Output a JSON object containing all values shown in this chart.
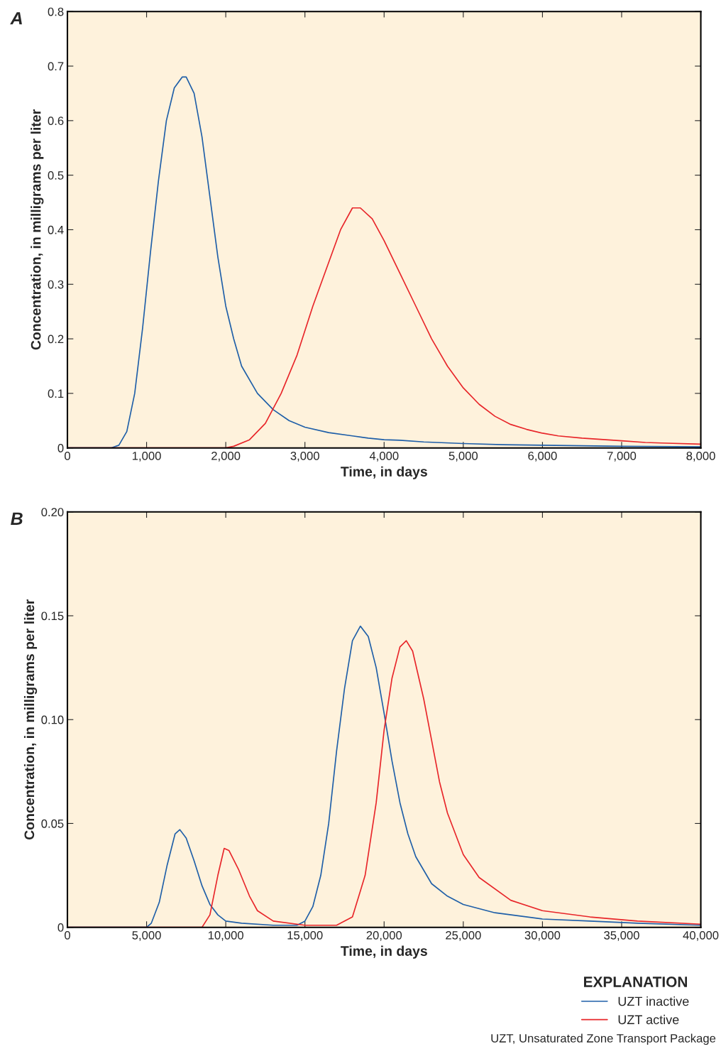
{
  "chart_data": [
    {
      "type": "line",
      "xlabel": "Time, in days",
      "ylabel": "Concentration, in milligrams per liter",
      "annotations": [
        "A"
      ],
      "xlim": [
        0,
        8000
      ],
      "ylim": [
        0,
        0.8
      ],
      "xticks": [
        0,
        {
          "value": 1000,
          "label": "1,000"
        },
        {
          "value": 2000,
          "label": "2,000"
        },
        {
          "value": 3000,
          "label": "3,000"
        },
        {
          "value": 4000,
          "label": "4,000"
        },
        {
          "value": 5000,
          "label": "5,000"
        },
        {
          "value": 6000,
          "label": "6,000"
        },
        {
          "value": 7000,
          "label": "7,000"
        },
        {
          "value": 8000,
          "label": "8,000"
        }
      ],
      "yticks": [
        0,
        0.1,
        0.2,
        0.3,
        0.4,
        0.5,
        0.6,
        0.7,
        0.8
      ],
      "grid": false,
      "legend": false,
      "marker": "none",
      "line_style": "solid",
      "series": [
        {
          "color": "#1f5fa8",
          "x": [
            0,
            550,
            650,
            750,
            850,
            950,
            1050,
            1150,
            1250,
            1350,
            1450,
            1500,
            1600,
            1700,
            1800,
            1900,
            2000,
            2100,
            2200,
            2400,
            2600,
            2800,
            3000,
            3300,
            3600,
            3800,
            4000,
            4200,
            4500,
            5000,
            5500,
            6000,
            7000,
            8000
          ],
          "values": [
            0,
            0,
            0.005,
            0.03,
            0.1,
            0.22,
            0.36,
            0.49,
            0.6,
            0.66,
            0.68,
            0.68,
            0.65,
            0.57,
            0.46,
            0.35,
            0.26,
            0.2,
            0.15,
            0.1,
            0.07,
            0.05,
            0.038,
            0.028,
            0.022,
            0.018,
            0.015,
            0.014,
            0.011,
            0.008,
            0.006,
            0.005,
            0.003,
            0.002
          ]
        },
        {
          "color": "#e8262a",
          "x": [
            0,
            2000,
            2100,
            2300,
            2500,
            2700,
            2900,
            3100,
            3300,
            3450,
            3600,
            3700,
            3850,
            4000,
            4200,
            4400,
            4600,
            4800,
            5000,
            5200,
            5400,
            5600,
            5800,
            6000,
            6200,
            6500,
            7000,
            7300,
            7500,
            8000
          ],
          "values": [
            0,
            0,
            0.003,
            0.015,
            0.045,
            0.1,
            0.17,
            0.26,
            0.34,
            0.4,
            0.44,
            0.44,
            0.42,
            0.38,
            0.32,
            0.26,
            0.2,
            0.15,
            0.11,
            0.08,
            0.058,
            0.043,
            0.034,
            0.027,
            0.022,
            0.018,
            0.013,
            0.01,
            0.009,
            0.007
          ]
        }
      ]
    },
    {
      "type": "line",
      "xlabel": "Time, in days",
      "ylabel": "Concentration, in milligrams per liter",
      "annotations": [
        "B",
        "UZT, Unsaturated Zone Transport Package"
      ],
      "xlim": [
        0,
        40000
      ],
      "ylim": [
        0,
        0.2
      ],
      "xticks": [
        0,
        {
          "value": 5000,
          "label": "5,000"
        },
        {
          "value": 10000,
          "label": "10,000"
        },
        {
          "value": 15000,
          "label": "15,000"
        },
        {
          "value": 20000,
          "label": "20,000"
        },
        {
          "value": 25000,
          "label": "25,000"
        },
        {
          "value": 30000,
          "label": "30,000"
        },
        {
          "value": 35000,
          "label": "35,000"
        },
        {
          "value": 40000,
          "label": "40,000"
        }
      ],
      "yticks": [
        0,
        {
          "value": 0.05,
          "label": "0.05"
        },
        {
          "value": 0.1,
          "label": "0.10"
        },
        {
          "value": 0.15,
          "label": "0.15"
        },
        {
          "value": 0.2,
          "label": "0.20"
        }
      ],
      "grid": false,
      "legend": "bottom right",
      "legend_title": "EXPLANATION",
      "marker": "none",
      "line_style": "solid",
      "series": [
        {
          "name": "UZT inactive",
          "color": "#1f5fa8",
          "x": [
            0,
            5000,
            5300,
            5800,
            6300,
            6800,
            7100,
            7500,
            8000,
            8500,
            9000,
            9500,
            10000,
            11000,
            13000,
            14500,
            15000,
            15500,
            16000,
            16500,
            17000,
            17500,
            18000,
            18500,
            19000,
            19500,
            20000,
            20500,
            21000,
            21500,
            22000,
            23000,
            24000,
            25000,
            27000,
            30000,
            33000,
            36000,
            40000
          ],
          "values": [
            0,
            0,
            0.002,
            0.012,
            0.03,
            0.045,
            0.047,
            0.043,
            0.032,
            0.02,
            0.011,
            0.006,
            0.003,
            0.002,
            0.001,
            0.001,
            0.003,
            0.01,
            0.025,
            0.05,
            0.085,
            0.115,
            0.138,
            0.145,
            0.14,
            0.125,
            0.103,
            0.08,
            0.06,
            0.045,
            0.034,
            0.021,
            0.015,
            0.011,
            0.007,
            0.004,
            0.003,
            0.002,
            0.001
          ]
        },
        {
          "name": "UZT active",
          "color": "#e8262a",
          "x": [
            0,
            8500,
            9000,
            9500,
            9900,
            10200,
            10800,
            11500,
            12000,
            13000,
            15000,
            17000,
            18000,
            18800,
            19500,
            20000,
            20500,
            21000,
            21400,
            21800,
            22500,
            23000,
            23500,
            24000,
            25000,
            26000,
            28000,
            30000,
            33000,
            36000,
            40000
          ],
          "values": [
            0,
            0,
            0.006,
            0.025,
            0.038,
            0.037,
            0.028,
            0.015,
            0.008,
            0.003,
            0.001,
            0.001,
            0.005,
            0.025,
            0.06,
            0.095,
            0.12,
            0.135,
            0.138,
            0.133,
            0.11,
            0.09,
            0.07,
            0.055,
            0.035,
            0.024,
            0.013,
            0.008,
            0.005,
            0.003,
            0.0015
          ]
        }
      ]
    }
  ]
}
